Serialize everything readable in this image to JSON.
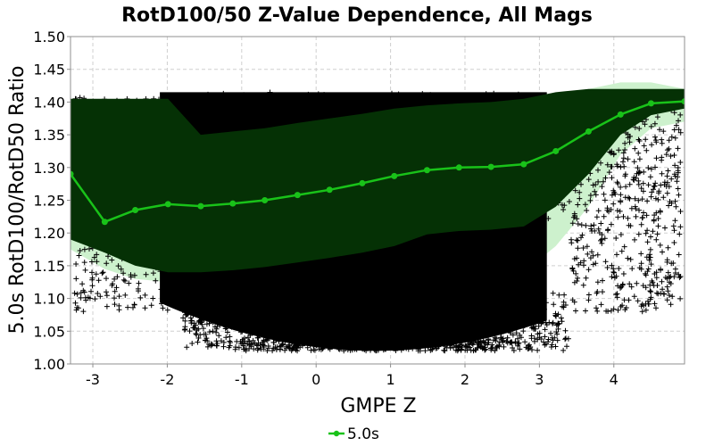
{
  "chart_data": {
    "type": "scatter",
    "title": "RotD100/50 Z-Value Dependence, All Mags",
    "xlabel": "GMPE Z",
    "ylabel": "5.0s RotD100/RotD50 Ratio",
    "xlim": [
      -3.3,
      4.95
    ],
    "ylim": [
      1.0,
      1.5
    ],
    "xticks": [
      -3,
      -2,
      -1,
      0,
      1,
      2,
      3,
      4
    ],
    "xtick_labels": [
      "-3",
      "-2",
      "-1",
      "0",
      "1",
      "2",
      "3",
      "4"
    ],
    "yticks": [
      1.0,
      1.05,
      1.1,
      1.15,
      1.2,
      1.25,
      1.3,
      1.35,
      1.4,
      1.45,
      1.5
    ],
    "ytick_labels": [
      "1.00",
      "1.05",
      "1.10",
      "1.15",
      "1.20",
      "1.25",
      "1.30",
      "1.35",
      "1.40",
      "1.45",
      "1.50"
    ],
    "grid": true,
    "legend_position": "bottom-center",
    "colors": {
      "scatter": "#000000",
      "mean_line": "#19c219",
      "inner_band": "#053105",
      "outer_band": "#cdf1cd",
      "grid": "#cfcfcf"
    },
    "series": [
      {
        "name": "5.0s",
        "style": "line-markers",
        "x": [
          -3.3,
          -2.84,
          -2.43,
          -1.99,
          -1.55,
          -1.12,
          -0.69,
          -0.25,
          0.18,
          0.62,
          1.05,
          1.49,
          1.92,
          2.35,
          2.79,
          3.22,
          3.66,
          4.09,
          4.5,
          4.95
        ],
        "y": [
          1.29,
          1.217,
          1.235,
          1.244,
          1.241,
          1.245,
          1.25,
          1.258,
          1.266,
          1.276,
          1.287,
          1.296,
          1.3,
          1.301,
          1.305,
          1.325,
          1.355,
          1.381,
          1.398,
          1.401
        ]
      }
    ],
    "band_inner": {
      "x": [
        -3.3,
        -2.84,
        -2.43,
        -1.99,
        -1.55,
        -1.12,
        -0.69,
        -0.25,
        0.18,
        0.62,
        1.05,
        1.49,
        1.92,
        2.35,
        2.79,
        3.22,
        3.66,
        4.09,
        4.5,
        4.95
      ],
      "upper": [
        1.405,
        1.405,
        1.405,
        1.405,
        1.35,
        1.355,
        1.36,
        1.368,
        1.375,
        1.382,
        1.39,
        1.395,
        1.398,
        1.4,
        1.405,
        1.415,
        1.42,
        1.42,
        1.42,
        1.42
      ],
      "lower": [
        1.19,
        1.17,
        1.15,
        1.14,
        1.14,
        1.143,
        1.148,
        1.155,
        1.162,
        1.17,
        1.18,
        1.198,
        1.203,
        1.205,
        1.21,
        1.24,
        1.29,
        1.35,
        1.38,
        1.39
      ]
    },
    "band_outer": {
      "x": [
        -3.3,
        -2.84,
        -2.43,
        -1.99,
        -1.55,
        -1.12,
        -0.69,
        -0.25,
        0.18,
        0.62,
        1.05,
        1.49,
        1.92,
        2.35,
        2.79,
        3.22,
        3.66,
        4.09,
        4.5,
        4.95
      ],
      "upper": [
        1.39,
        1.31,
        1.345,
        1.4,
        1.4,
        1.4,
        1.4,
        1.4,
        1.4,
        1.4,
        1.4,
        1.4,
        1.4,
        1.4,
        1.4,
        1.41,
        1.42,
        1.43,
        1.43,
        1.42
      ],
      "lower": [
        1.175,
        1.145,
        1.13,
        1.125,
        1.12,
        1.12,
        1.12,
        1.12,
        1.12,
        1.12,
        1.12,
        1.12,
        1.12,
        1.12,
        1.14,
        1.18,
        1.24,
        1.32,
        1.36,
        1.37
      ]
    },
    "scatter_cloud": {
      "density_center": 0.8,
      "density_width": 2.0,
      "y_max": 1.415,
      "y_min": 1.02,
      "x_min": -3.25,
      "x_max": 4.9
    }
  }
}
